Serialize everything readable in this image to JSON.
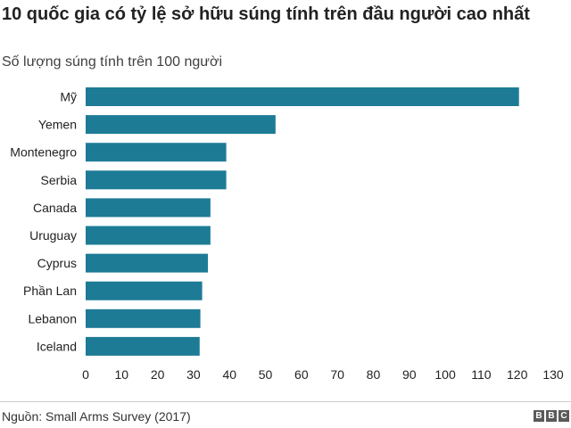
{
  "header": {
    "title": "10 quốc gia có tỷ lệ sở hữu súng tính trên đầu người cao nhất",
    "subtitle": "Số lượng súng tính trên 100 người"
  },
  "footer": {
    "source": "Nguồn: Small Arms Survey (2017)",
    "logo_letters": [
      "B",
      "B",
      "C"
    ]
  },
  "colors": {
    "bar": "#1d7b96",
    "logo": "#5a5a5a"
  },
  "chart_data": {
    "type": "bar",
    "orientation": "horizontal",
    "title": "10 quốc gia có tỷ lệ sở hữu súng tính trên đầu người cao nhất",
    "subtitle": "Số lượng súng tính trên 100 người",
    "categories": [
      "Mỹ",
      "Yemen",
      "Montenegro",
      "Serbia",
      "Canada",
      "Uruguay",
      "Cyprus",
      "Phần Lan",
      "Lebanon",
      "Iceland"
    ],
    "values": [
      120.5,
      52.8,
      39.1,
      39.1,
      34.7,
      34.7,
      34.0,
      32.4,
      31.9,
      31.7
    ],
    "xlim": [
      0,
      130
    ],
    "xticks": [
      0,
      10,
      20,
      30,
      40,
      50,
      60,
      70,
      80,
      90,
      100,
      110,
      120,
      130
    ],
    "grid": false,
    "legend": "none"
  }
}
